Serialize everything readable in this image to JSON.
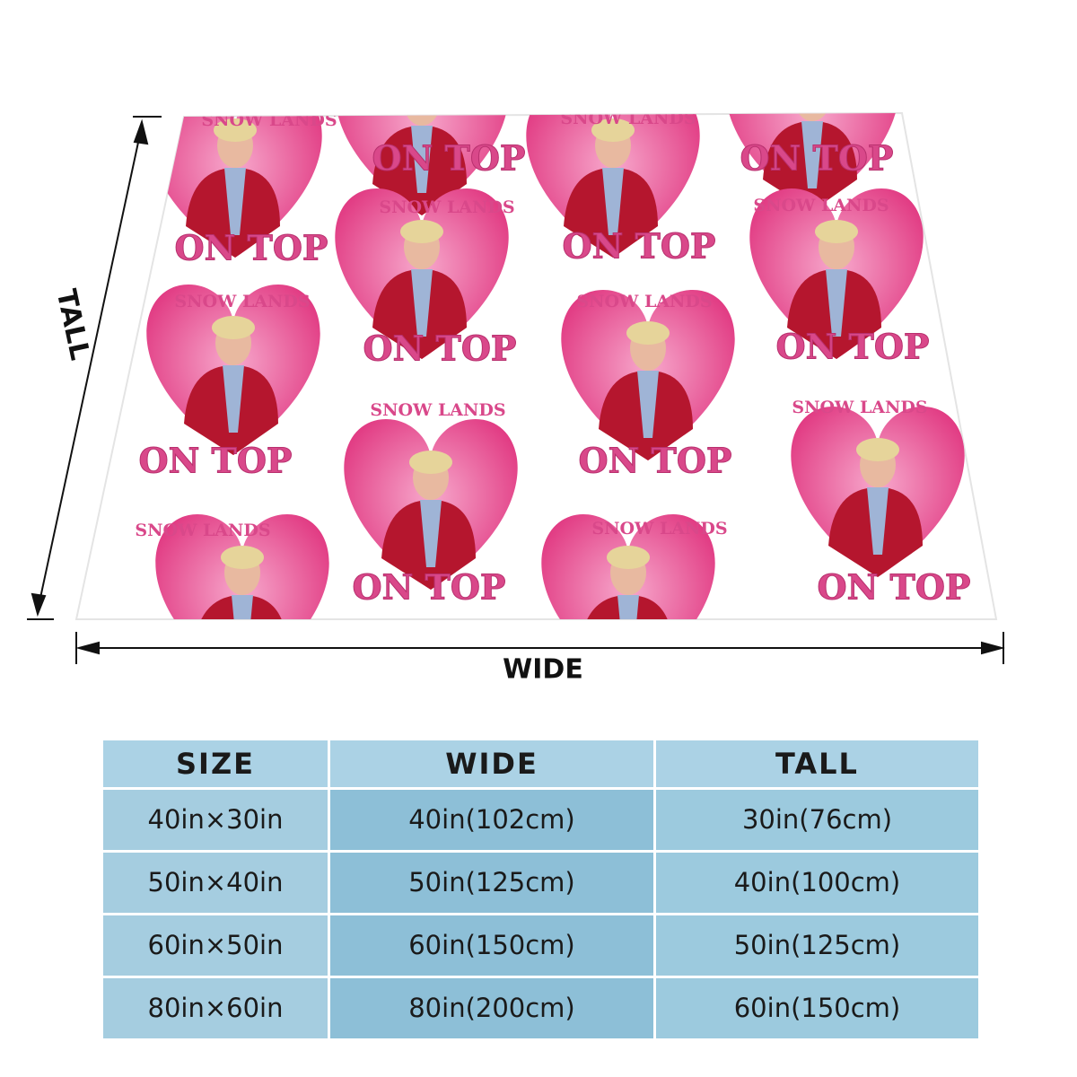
{
  "blanket": {
    "pattern": {
      "top_line": "SNOW LANDS",
      "bottom_line": "ON TOP"
    }
  },
  "dimensions": {
    "height_label": "TALL",
    "width_label": "WIDE"
  },
  "size_table": {
    "headers": [
      "SIZE",
      "WIDE",
      "TALL"
    ],
    "rows": [
      [
        "40in×30in",
        "40in(102cm)",
        "30in(76cm)"
      ],
      [
        "50in×40in",
        "50in(125cm)",
        "40in(100cm)"
      ],
      [
        "60in×50in",
        "60in(150cm)",
        "50in(125cm)"
      ],
      [
        "80in×60in",
        "80in(200cm)",
        "60in(150cm)"
      ]
    ]
  }
}
